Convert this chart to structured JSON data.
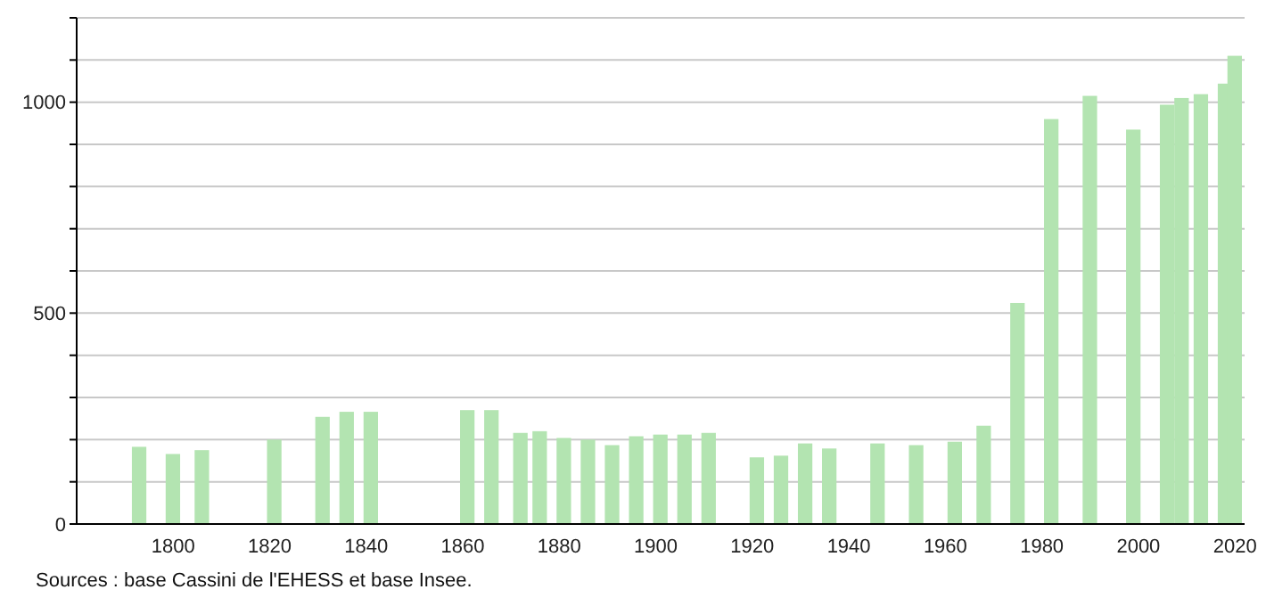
{
  "chart_data": {
    "type": "bar",
    "color": "#b3e4b1",
    "x": [
      1793,
      1800,
      1806,
      1821,
      1831,
      1836,
      1841,
      1861,
      1866,
      1872,
      1876,
      1881,
      1886,
      1891,
      1896,
      1901,
      1906,
      1911,
      1921,
      1926,
      1931,
      1936,
      1946,
      1954,
      1962,
      1968,
      1975,
      1982,
      1990,
      1999,
      2006,
      2009,
      2013,
      2018,
      2020
    ],
    "values": [
      183,
      166,
      175,
      200,
      254,
      266,
      266,
      270,
      270,
      216,
      220,
      204,
      200,
      187,
      208,
      212,
      212,
      216,
      158,
      162,
      191,
      179,
      191,
      187,
      195,
      233,
      524,
      960,
      1015,
      935,
      994,
      1010,
      1019,
      1044,
      1110
    ],
    "xlim": [
      1780,
      2022
    ],
    "xticks": [
      1800,
      1820,
      1840,
      1860,
      1880,
      1900,
      1920,
      1940,
      1960,
      1980,
      2000,
      2020
    ],
    "ylim": [
      0,
      1200
    ],
    "yticks": [
      0,
      {
        "value": 100,
        "label": null
      },
      {
        "value": 200,
        "label": null
      },
      {
        "value": 300,
        "label": null
      },
      {
        "value": 400,
        "label": null
      },
      500,
      {
        "value": 600,
        "label": null
      },
      {
        "value": 700,
        "label": null
      },
      {
        "value": 800,
        "label": null
      },
      {
        "value": 900,
        "label": null
      },
      1000,
      {
        "value": 1100,
        "label": null
      },
      {
        "value": 1200,
        "label": null
      }
    ],
    "grid": "y",
    "annotations": [
      "Sources : base Cassini de l'EHESS et base Insee."
    ]
  }
}
